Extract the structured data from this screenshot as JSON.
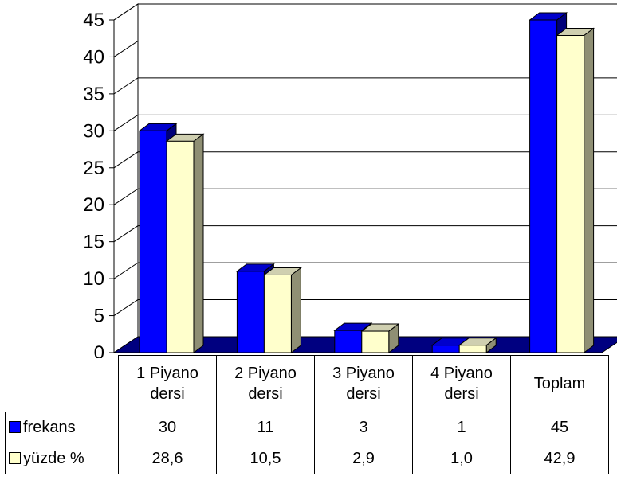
{
  "chart_data": {
    "type": "bar",
    "categories": [
      "1 Piyano\ndersi",
      "2 Piyano\ndersi",
      "3 Piyano\ndersi",
      "4 Piyano\ndersi",
      "Toplam"
    ],
    "series": [
      {
        "name": "frekans",
        "values": [
          30,
          11,
          3,
          1,
          45
        ],
        "labels": [
          "30",
          "11",
          "3",
          "1",
          "45"
        ],
        "color": "#0000ff"
      },
      {
        "name": "yüzde %",
        "values": [
          28.6,
          10.5,
          2.9,
          1.0,
          42.9
        ],
        "labels": [
          "28,6",
          "10,5",
          "2,9",
          "1,0",
          "42,9"
        ],
        "color": "#ffffcc"
      }
    ],
    "ylim": [
      0,
      45
    ],
    "yticks": [
      "0",
      "5",
      "10",
      "15",
      "20",
      "25",
      "30",
      "35",
      "40",
      "45"
    ],
    "grid": true,
    "floor_color": "#000080",
    "legend": "data-table-below"
  }
}
